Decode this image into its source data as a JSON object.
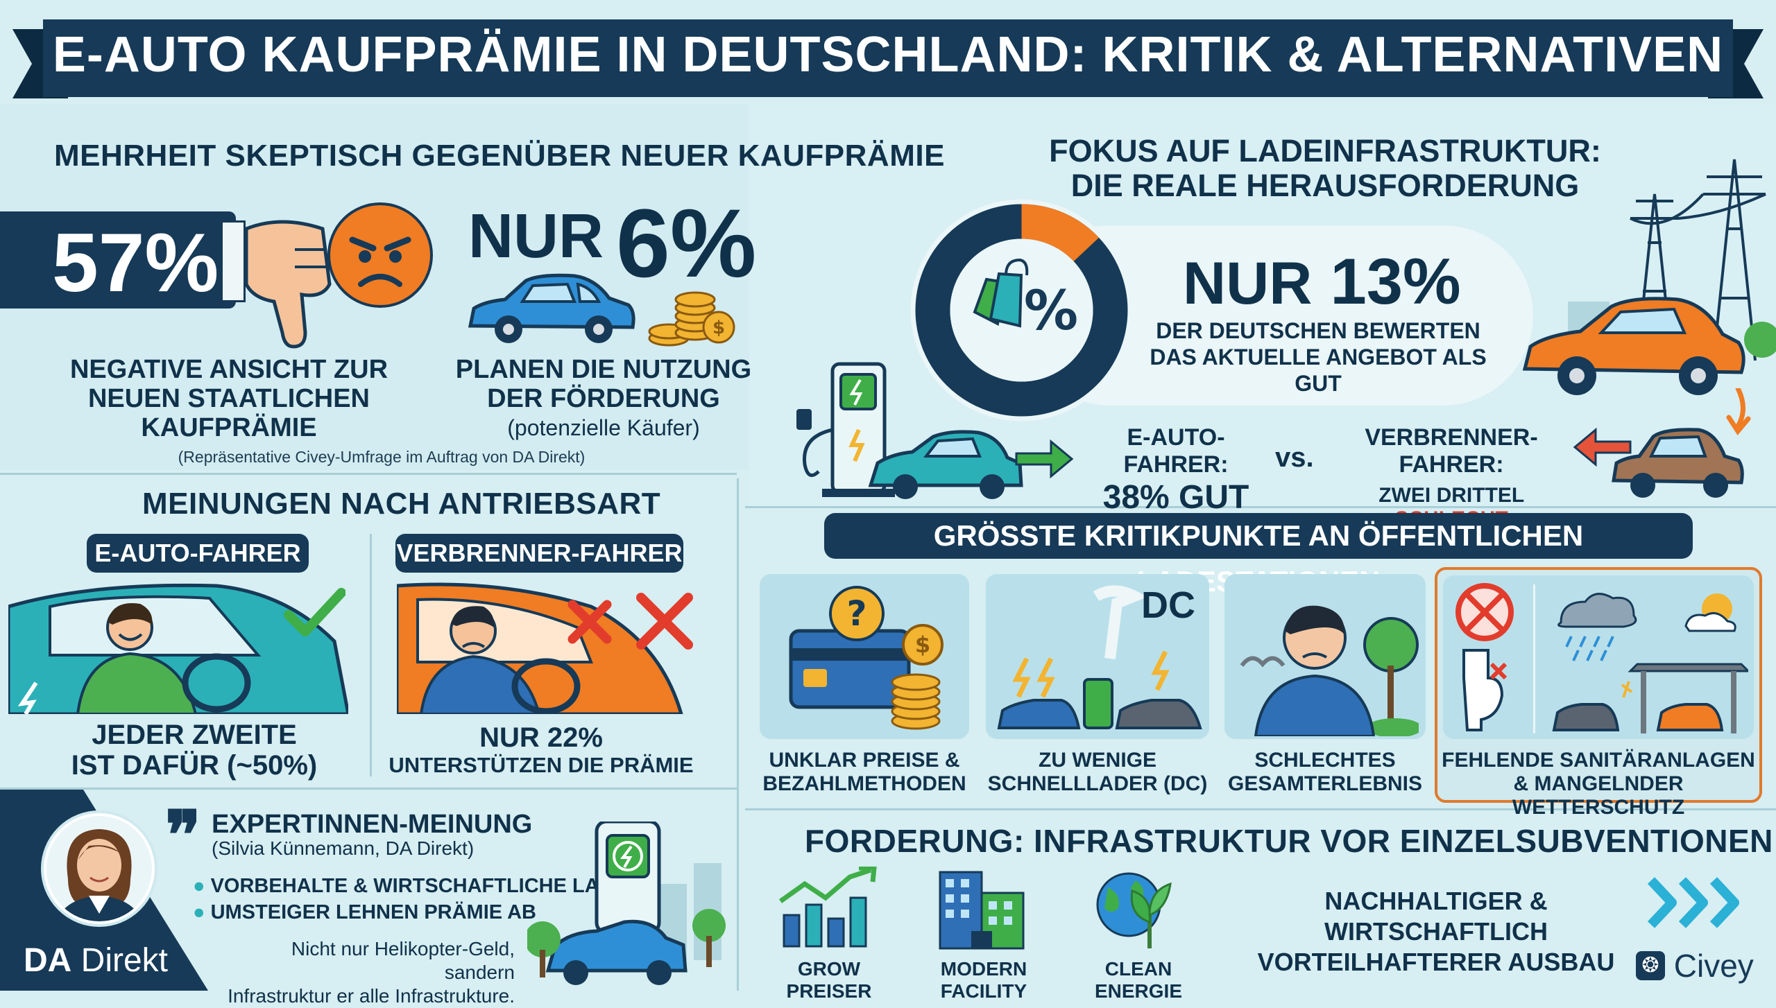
{
  "banner": {
    "title": "E-AUTO KAUFPRÄMIE IN DEUTSCHLAND: KRITIK & ALTERNATIVEN"
  },
  "skeptic": {
    "title": "MEHRHEIT SKEPTISCH GEGENÜBER NEUER KAUFPRÄMIE",
    "stat_negative": "57%",
    "negative_caption": [
      "NEGATIVE ANSICHT ZUR",
      "NEUEN STAATLICHEN",
      "KAUFPRÄMIE"
    ],
    "stat_prefix": "NUR",
    "stat_plan": "6%",
    "plan_caption": [
      "PLANEN DIE NUTZUNG",
      "DER FÖRDERUNG"
    ],
    "plan_sub": "(potenzielle Käufer)",
    "source": "(Repräsentative Civey-Umfrage im Auftrag von DA Direkt)"
  },
  "drive": {
    "title": "MEINUNGEN NACH ANTRIEBSART",
    "ev_label": "E-AUTO-FAHRER",
    "ice_label": "VERBRENNER-FAHRER",
    "ev_caption": [
      "JEDER ZWEITE",
      "IST DAFÜR (~50%)"
    ],
    "ice_caption_big": "NUR 22%",
    "ice_caption_small": "UNTERSTÜTZEN DIE PRÄMIE",
    "ev_support_fraction": 0.5,
    "ice_support_fraction": 0.22
  },
  "expert": {
    "title": "EXPERTINNEN-MEINUNG",
    "person": "(Silvia Künnemann, DA Direkt)",
    "bullets": [
      "VORBEHALTE & WIRTSCHAFTLICHE LAGE",
      "UMSTEIGER LEHNEN PRÄMIE AB"
    ],
    "quote": [
      "Nicht nur Helikopter-Geld, sandern",
      "Infrastruktur er alle Infrastrukture."
    ],
    "logo_da": "DA",
    "logo_direkt": "Direkt"
  },
  "infra": {
    "title": [
      "FOKUS AUF LADEINFRASTRUKTUR:",
      "DIE REALE HERAUSFORDERUNG"
    ],
    "stat_prefix": "NUR",
    "stat": "13%",
    "stat_caption": [
      "DER DEUTSCHEN BEWERTEN",
      "DAS AKTUELLE ANGEBOT ALS GUT"
    ],
    "good_fraction": 0.13,
    "ev_driver_label": "E-AUTO-FAHRER:",
    "ev_driver_value": "38% GUT",
    "vs": "vs.",
    "ice_driver_label": "VERBRENNER-FAHRER:",
    "ice_driver_value_prefix": "ZWEI DRITTEL",
    "ice_driver_value_bad": "SCHLECHT"
  },
  "criticism": {
    "title": "GRÖSSTE KRITIKPUNKTE AN ÖFFENTLICHEN LADESTATIONEN",
    "items": [
      {
        "lines": [
          "UNKLAR PREISE &",
          "BEZAHLMETHODEN"
        ]
      },
      {
        "lines": [
          "ZU WENIGE",
          "SCHNELLLADER (DC)"
        ],
        "badge": "DC"
      },
      {
        "lines": [
          "SCHLECHTES",
          "GESAMTERLEBNIS"
        ]
      },
      {
        "lines": [
          "FEHLENDE SANITÄRANLAGEN",
          "& MANGELNDER WETTERSCHUTZ"
        ]
      }
    ]
  },
  "demand": {
    "title": "FORDERUNG: INFRASTRUKTUR VOR EINZELSUBVENTIONEN",
    "icons": [
      "GROW PREISER",
      "MODERN FACILITY",
      "CLEAN ENERGIE"
    ],
    "claim": [
      "NACHHALTIGER & WIRTSCHAFTLICH",
      "VORTEILHAFTERER AUSBAU"
    ],
    "civey": "Civey"
  },
  "colors": {
    "navy": "#163a57",
    "orange": "#f07c23",
    "red": "#e23c2c",
    "green": "#3fae49",
    "teal": "#2bb0b8",
    "panel": "#cfe9ee"
  }
}
